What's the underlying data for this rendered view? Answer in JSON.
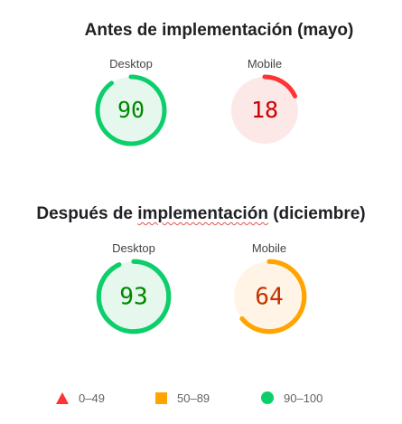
{
  "colors": {
    "fail": "#ff3333",
    "fail_bg": "#fde8e8",
    "average": "#ffa400",
    "average_bg": "#fff4e5",
    "pass": "#0cce6b",
    "pass_bg": "#e6f8ee",
    "pass_text": "#008800",
    "fail_text": "#cc0000",
    "average_text": "#c33300"
  },
  "before": {
    "title_main": "Antes de implementación (mayo)",
    "desktop": {
      "label": "Desktop",
      "score": 90
    },
    "mobile": {
      "label": "Mobile",
      "score": 18
    }
  },
  "after": {
    "title_prefix": "Después de ",
    "title_underlined": "implementación",
    "title_suffix": " (diciembre)",
    "desktop": {
      "label": "Desktop",
      "score": 93
    },
    "mobile": {
      "label": "Mobile",
      "score": 64
    }
  },
  "legend": [
    {
      "shape": "triangle-icon",
      "range": "0–49"
    },
    {
      "shape": "square-icon",
      "range": "50–89"
    },
    {
      "shape": "circle-icon",
      "range": "90–100"
    }
  ]
}
